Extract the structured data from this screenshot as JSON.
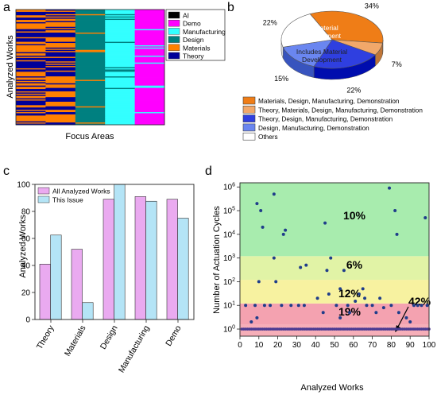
{
  "panels": {
    "a": {
      "label": "a"
    },
    "b": {
      "label": "b"
    },
    "c": {
      "label": "c"
    },
    "d": {
      "label": "d"
    }
  },
  "chart_data": [
    {
      "panel": "a",
      "type": "heatmap",
      "title": "",
      "xlabel": "Focus Areas",
      "ylabel": "Analyzed Works",
      "legend": [
        "AI",
        "Demo",
        "Manufacturing",
        "Design",
        "Materials",
        "Theory"
      ],
      "legend_colors": [
        "#000000",
        "#ff00ff",
        "#33ffff",
        "#008080",
        "#ff8000",
        "#000099"
      ],
      "columns": [
        "Theory",
        "Materials",
        "Design",
        "Manufacturing",
        "Demo"
      ],
      "rows": 100,
      "fill_fraction": [
        0.41,
        0.52,
        0.89,
        0.91,
        0.89
      ]
    },
    {
      "panel": "b",
      "type": "pie",
      "slices": [
        {
          "label": "Materials, Design, Manufacturing, Demonstration",
          "value": 34,
          "color": "#ef7d17"
        },
        {
          "label": "Theory, Materials, Design, Manufacturing, Demonstration",
          "value": 7,
          "color": "#f2a86a"
        },
        {
          "label": "Theory, Design, Manufacturing, Demonstration",
          "value": 22,
          "color": "#2f3fe0"
        },
        {
          "label": "Design, Manufacturing, Demonstration",
          "value": 15,
          "color": "#6a86f0"
        },
        {
          "label": "Others",
          "value": 22,
          "color": "#ffffff"
        }
      ],
      "slice_labels": [
        "34%",
        "7%",
        "22%",
        "15%",
        "22%"
      ],
      "annotations": [
        "No Material\nDevelopment",
        "Includes Material\nDevelopment"
      ]
    },
    {
      "panel": "c",
      "type": "bar",
      "categories": [
        "Theory",
        "Materials",
        "Design",
        "Manufacturing",
        "Demo"
      ],
      "series": [
        {
          "name": "All Analyzed Works",
          "values": [
            41,
            52,
            89,
            91,
            89
          ],
          "color": "#eaaaf0"
        },
        {
          "name": "This Issue",
          "values": [
            62.5,
            12.5,
            100,
            87.5,
            75
          ],
          "color": "#b4e4f6"
        }
      ],
      "xlabel": "",
      "ylabel": "Analyzed Works",
      "ylim": [
        0,
        100
      ],
      "yticks": [
        "0",
        "20",
        "40",
        "60",
        "80",
        "100"
      ],
      "legend": "top-left"
    },
    {
      "panel": "d",
      "type": "scatter",
      "xlabel": "Analyzed Works",
      "ylabel": "Number of Actuation Cycles",
      "xlim": [
        0,
        100
      ],
      "ylim": [
        0.5,
        1500000
      ],
      "yscale": "log",
      "xticks": [
        "0",
        "10",
        "20",
        "30",
        "40",
        "50",
        "60",
        "70",
        "80",
        "90",
        "100"
      ],
      "yticks": [
        {
          "base": "10",
          "exp": "0"
        },
        {
          "base": "10",
          "exp": "1"
        },
        {
          "base": "10",
          "exp": "2"
        },
        {
          "base": "10",
          "exp": "3"
        },
        {
          "base": "10",
          "exp": "4"
        },
        {
          "base": "10",
          "exp": "5"
        },
        {
          "base": "10",
          "exp": "6"
        }
      ],
      "bands": [
        {
          "from": 0.5,
          "to": 1.5,
          "color": "#f6aeb8",
          "label": ""
        },
        {
          "from": 1.5,
          "to": 12,
          "color": "#f4a2b0",
          "label": "19%"
        },
        {
          "from": 12,
          "to": 120,
          "color": "#f7f2a0",
          "label": "12%"
        },
        {
          "from": 120,
          "to": 1200,
          "color": "#e1f3a6",
          "label": "6%"
        },
        {
          "from": 1200,
          "to": 1500000,
          "color": "#a8ecae",
          "label": "10%"
        }
      ],
      "band_label_42": "42%",
      "points": [
        [
          9,
          200000
        ],
        [
          11,
          100000
        ],
        [
          12,
          20000
        ],
        [
          18,
          500000
        ],
        [
          24,
          15000
        ],
        [
          23,
          10000
        ],
        [
          45,
          30000
        ],
        [
          79,
          900000
        ],
        [
          82,
          100000
        ],
        [
          83,
          10000
        ],
        [
          98,
          50000
        ],
        [
          10,
          100
        ],
        [
          19,
          100
        ],
        [
          18,
          1000
        ],
        [
          32,
          400
        ],
        [
          35,
          500
        ],
        [
          46,
          300
        ],
        [
          48,
          1000
        ],
        [
          55,
          300
        ],
        [
          6,
          2
        ],
        [
          9,
          3
        ],
        [
          31,
          10
        ],
        [
          41,
          20
        ],
        [
          44,
          5
        ],
        [
          51,
          10
        ],
        [
          53,
          3
        ],
        [
          58,
          5
        ],
        [
          61,
          15
        ],
        [
          63,
          30
        ],
        [
          65,
          50
        ],
        [
          66,
          20
        ],
        [
          70,
          10
        ],
        [
          72,
          5
        ],
        [
          74,
          20
        ],
        [
          76,
          8
        ],
        [
          80,
          10
        ],
        [
          84,
          5
        ],
        [
          88,
          3
        ],
        [
          90,
          2
        ],
        [
          92,
          10
        ],
        [
          94,
          10
        ],
        [
          96,
          10
        ],
        [
          99,
          10
        ],
        [
          67,
          10
        ],
        [
          53,
          50
        ],
        [
          47,
          30
        ],
        [
          57,
          10
        ],
        [
          34,
          10
        ],
        [
          27,
          10
        ],
        [
          22,
          10
        ],
        [
          16,
          10
        ],
        [
          13,
          10
        ],
        [
          8,
          10
        ],
        [
          3,
          10
        ]
      ]
    }
  ]
}
